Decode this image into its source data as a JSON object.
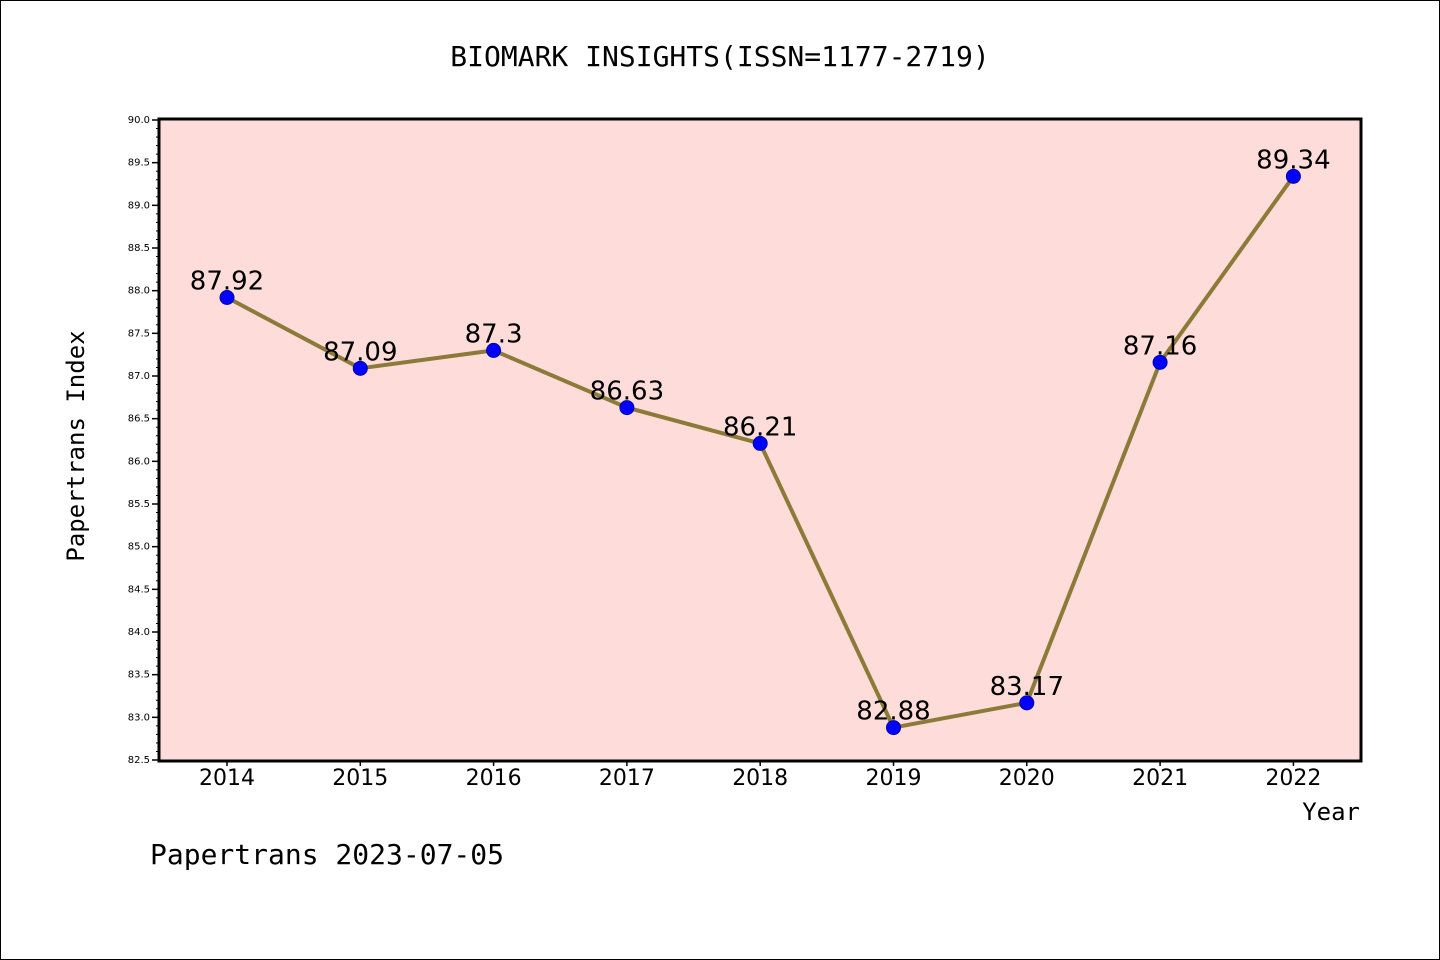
{
  "chart_data": {
    "type": "line",
    "title": "BIOMARK INSIGHTS(ISSN=1177-2719)",
    "xlabel": "Year",
    "ylabel": "Papertrans Index",
    "footer": "Papertrans 2023-07-05",
    "categories": [
      "2014",
      "2015",
      "2016",
      "2017",
      "2018",
      "2019",
      "2020",
      "2021",
      "2022"
    ],
    "series": [
      {
        "values": [
          87.92,
          87.09,
          87.3,
          86.63,
          86.21,
          82.88,
          83.17,
          87.16,
          89.34
        ],
        "data_labels": [
          "87.92",
          "87.09",
          "87.3",
          "86.63",
          "86.21",
          "82.88",
          "83.17",
          "87.16",
          "89.34"
        ]
      }
    ],
    "ylim": [
      82.5,
      90.0
    ],
    "yticks": [
      "82.5",
      "83.0",
      "83.5",
      "84.0",
      "84.5",
      "85.0",
      "85.5",
      "86.0",
      "86.5",
      "87.0",
      "87.5",
      "88.0",
      "88.5",
      "89.0",
      "89.5",
      "90.0"
    ],
    "grid": false,
    "colors": {
      "plot_background": "#fddcda",
      "line": "#8c7a38",
      "marker": "#0000ff",
      "marker_edge": "#0000aa"
    }
  }
}
